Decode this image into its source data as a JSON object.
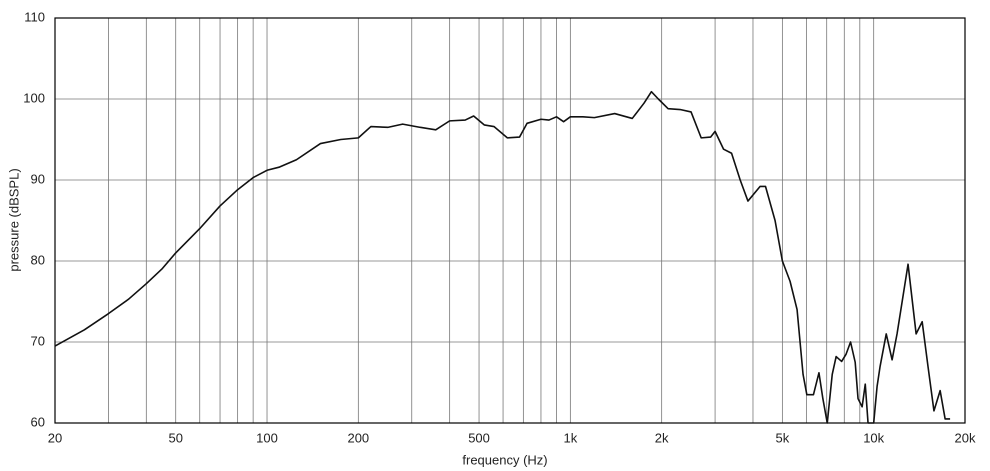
{
  "chart_data": {
    "type": "line",
    "xlabel": "frequency (Hz)",
    "ylabel": "pressure (dBSPL)",
    "xscale": "log",
    "grid": true,
    "color": "#111111",
    "xlim": [
      20,
      20000
    ],
    "ylim": [
      60,
      110
    ],
    "xticks": [
      20,
      50,
      100,
      200,
      500,
      {
        "value": 1000,
        "label": "1k"
      },
      {
        "value": 2000,
        "label": "2k"
      },
      {
        "value": 5000,
        "label": "5k"
      },
      {
        "value": 10000,
        "label": "10k"
      },
      {
        "value": 20000,
        "label": "20k"
      }
    ],
    "xminorticks": [
      30,
      40,
      60,
      70,
      80,
      90,
      300,
      400,
      600,
      700,
      800,
      900,
      3000,
      4000,
      6000,
      7000,
      8000,
      9000
    ],
    "yticks": [
      60,
      70,
      80,
      90,
      100,
      110
    ],
    "x": [
      20,
      25,
      30,
      35,
      40,
      45,
      50,
      60,
      70,
      80,
      90,
      100,
      110,
      125,
      150,
      175,
      200,
      220,
      250,
      280,
      320,
      360,
      400,
      450,
      480,
      520,
      560,
      620,
      680,
      720,
      800,
      850,
      900,
      950,
      1000,
      1100,
      1200,
      1400,
      1600,
      1750,
      1850,
      1950,
      2100,
      2300,
      2500,
      2700,
      2900,
      3000,
      3200,
      3400,
      3630,
      3850,
      4220,
      4400,
      4730,
      5000,
      5300,
      5590,
      5850,
      6020,
      6330,
      6600,
      6800,
      7030,
      7300,
      7520,
      7840,
      8110,
      8390,
      8690,
      8880,
      9160,
      9380,
      9580,
      10000,
      10260,
      10500,
      11000,
      11500,
      11940,
      12980,
      13800,
      14450,
      15100,
      15800,
      16560,
      17200,
      17860
    ],
    "values": [
      69.5,
      71.5,
      73.5,
      75.3,
      77.2,
      79,
      81,
      84,
      86.8,
      88.8,
      90.3,
      91.2,
      91.6,
      92.5,
      94.5,
      95,
      95.2,
      96.6,
      96.5,
      96.9,
      96.5,
      96.2,
      97.3,
      97.4,
      97.9,
      96.8,
      96.6,
      95.2,
      95.3,
      97,
      97.5,
      97.4,
      97.8,
      97.2,
      97.8,
      97.8,
      97.7,
      98.2,
      97.6,
      99.5,
      100.9,
      100,
      98.8,
      98.7,
      98.4,
      95.2,
      95.3,
      96,
      93.8,
      93.3,
      90,
      87.4,
      89.2,
      89.2,
      85,
      80,
      77.5,
      74,
      66,
      63.5,
      63.5,
      66.2,
      63,
      60,
      66,
      68.2,
      67.6,
      68.5,
      70,
      67.5,
      63,
      62,
      64.8,
      60,
      60,
      64.5,
      67,
      71,
      67.8,
      71,
      79.6,
      71,
      72.5,
      67,
      61.5,
      64,
      60.5,
      60.5
    ]
  }
}
